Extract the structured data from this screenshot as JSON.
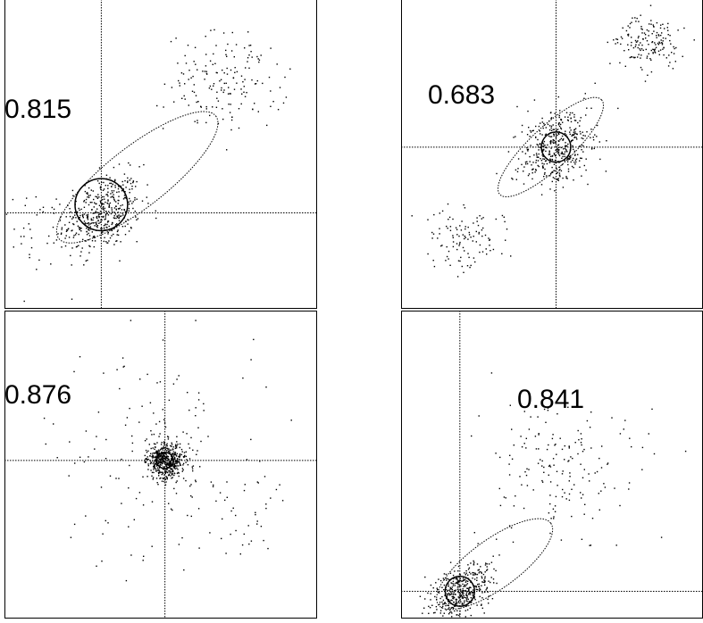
{
  "chart_data": [
    {
      "type": "scatter",
      "annotation": "0.815",
      "clusters": [
        {
          "center": [
            0.0,
            0.0
          ],
          "spread": [
            0.07,
            0.07
          ],
          "count": 450,
          "correlation": 0.3
        },
        {
          "center": [
            0.45,
            0.48
          ],
          "spread": [
            0.11,
            0.09
          ],
          "count": 170,
          "correlation": 0.0
        },
        {
          "center": [
            -0.25,
            -0.05
          ],
          "spread": [
            0.06,
            0.07
          ],
          "count": 35,
          "correlation": 0.0
        }
      ],
      "crosshair": [
        0.0,
        0.0
      ],
      "ellipses": [
        {
          "style": "solid",
          "center": [
            0.0,
            0.03
          ],
          "rx": 0.095,
          "ry": 0.095,
          "angle_deg": 0
        },
        {
          "style": "dotted",
          "center": [
            0.13,
            0.13
          ],
          "rx": 0.36,
          "ry": 0.11,
          "angle_deg": 38
        }
      ],
      "xlim": [
        -0.35,
        0.78
      ],
      "ylim": [
        -0.35,
        0.78
      ]
    },
    {
      "type": "scatter",
      "annotation": "0.683",
      "clusters": [
        {
          "center": [
            0.0,
            0.0
          ],
          "spread": [
            0.07,
            0.07
          ],
          "count": 420,
          "correlation": 0.2
        },
        {
          "center": [
            0.34,
            0.38
          ],
          "spread": [
            0.07,
            0.05
          ],
          "count": 160,
          "correlation": 0.0
        },
        {
          "center": [
            -0.35,
            -0.33
          ],
          "spread": [
            0.07,
            0.06
          ],
          "count": 110,
          "correlation": 0.0
        }
      ],
      "crosshair": [
        0.0,
        0.0
      ],
      "ellipses": [
        {
          "style": "solid",
          "center": [
            0.0,
            0.0
          ],
          "rx": 0.055,
          "ry": 0.055,
          "angle_deg": 0
        },
        {
          "style": "dotted",
          "center": [
            -0.02,
            0.0
          ],
          "rx": 0.26,
          "ry": 0.075,
          "angle_deg": 43
        }
      ],
      "xlim": [
        -0.58,
        0.55
      ],
      "ylim": [
        -0.59,
        0.54
      ]
    },
    {
      "type": "scatter",
      "annotation": "0.876",
      "clusters": [
        {
          "center": [
            0.0,
            0.0
          ],
          "spread": [
            0.035,
            0.035
          ],
          "count": 480,
          "correlation": 0.0
        },
        {
          "center": [
            0.0,
            0.0
          ],
          "spread": [
            0.2,
            0.2
          ],
          "count": 150,
          "correlation": 0.0
        },
        {
          "center": [
            0.3,
            -0.22
          ],
          "spread": [
            0.07,
            0.07
          ],
          "count": 25,
          "correlation": 0.0
        }
      ],
      "crosshair": [
        0.0,
        0.0
      ],
      "ellipses": [
        {
          "style": "solid",
          "center": [
            0.0,
            0.0
          ],
          "rx": 0.03,
          "ry": 0.03,
          "angle_deg": 0
        },
        {
          "style": "dotted",
          "center": [
            0.0,
            0.0
          ],
          "rx": 0.045,
          "ry": 0.045,
          "angle_deg": 0
        }
      ],
      "xlim": [
        -0.58,
        0.55
      ],
      "ylim": [
        -0.58,
        0.55
      ]
    },
    {
      "type": "scatter",
      "annotation": "0.841",
      "clusters": [
        {
          "center": [
            0.0,
            0.0
          ],
          "spread": [
            0.055,
            0.055
          ],
          "count": 420,
          "correlation": 0.4
        },
        {
          "center": [
            0.38,
            0.45
          ],
          "spread": [
            0.15,
            0.12
          ],
          "count": 170,
          "correlation": 0.0
        }
      ],
      "crosshair": [
        0.0,
        0.0
      ],
      "ellipses": [
        {
          "style": "solid",
          "center": [
            0.0,
            0.0
          ],
          "rx": 0.055,
          "ry": 0.055,
          "angle_deg": 0
        },
        {
          "style": "dotted",
          "center": [
            0.13,
            0.1
          ],
          "rx": 0.26,
          "ry": 0.09,
          "angle_deg": 36
        }
      ],
      "xlim": [
        -0.22,
        0.91
      ],
      "ylim": [
        -0.1,
        1.03
      ]
    }
  ]
}
